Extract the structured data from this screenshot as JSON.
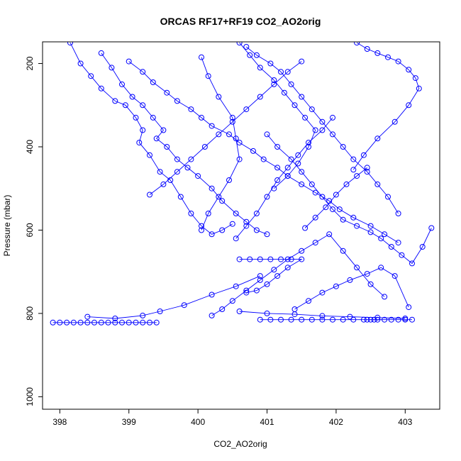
{
  "chart_data": {
    "type": "line",
    "title": "ORCAS RF17+RF19 CO2_AO2orig",
    "xlabel": "CO2_AO2orig",
    "ylabel": "Pressure (mbar)",
    "xlim": [
      397.75,
      403.5
    ],
    "ylim": [
      1030,
      148
    ],
    "y_inverted": true,
    "x_ticks": [
      398,
      399,
      400,
      401,
      402,
      403
    ],
    "y_ticks": [
      200,
      400,
      600,
      800,
      1000
    ],
    "line_color": "#0000ff",
    "marker": "open-circle",
    "grid": false,
    "legend": "none",
    "series": [
      {
        "x": [
          398.15,
          398.3,
          398.45,
          398.6,
          398.8,
          398.95,
          399.1,
          399.2,
          399.15,
          399.3,
          399.45,
          399.6,
          399.75,
          399.9,
          400.05,
          400.2,
          400.35,
          400.5
        ],
        "y": [
          150,
          200,
          230,
          260,
          290,
          300,
          330,
          360,
          390,
          420,
          460,
          480,
          520,
          560,
          590,
          610,
          600,
          585
        ]
      },
      {
        "x": [
          398.6,
          398.75,
          398.9,
          399.05,
          399.2,
          399.35,
          399.5,
          399.4,
          399.55,
          399.7,
          399.85,
          400.0,
          400.2,
          400.35,
          400.55,
          400.7,
          400.85,
          401.0
        ],
        "y": [
          175,
          210,
          250,
          280,
          300,
          330,
          360,
          380,
          400,
          430,
          450,
          470,
          500,
          530,
          560,
          580,
          600,
          610
        ]
      },
      {
        "x": [
          399.0,
          399.2,
          399.35,
          399.55,
          399.7,
          399.9,
          400.05,
          400.2,
          400.45,
          400.6,
          400.8,
          400.95,
          401.15,
          401.3,
          401.5,
          401.7,
          401.9,
          402.05,
          402.25,
          402.5,
          402.7,
          402.9
        ],
        "y": [
          195,
          220,
          245,
          270,
          290,
          310,
          330,
          350,
          370,
          390,
          410,
          430,
          450,
          470,
          490,
          510,
          530,
          550,
          570,
          590,
          610,
          630
        ]
      },
      {
        "x": [
          400.05,
          400.15,
          400.3,
          400.5,
          400.55,
          400.6,
          400.45,
          400.3,
          400.15,
          400.05
        ],
        "y": [
          185,
          230,
          280,
          330,
          380,
          430,
          480,
          520,
          560,
          600
        ]
      },
      {
        "x": [
          400.7,
          400.85,
          401.05,
          401.2,
          401.35,
          401.5,
          401.65,
          401.8,
          401.95,
          402.1,
          402.25,
          402.45,
          402.6,
          402.75,
          402.9
        ],
        "y": [
          160,
          180,
          200,
          220,
          250,
          280,
          310,
          340,
          370,
          400,
          430,
          460,
          490,
          520,
          560
        ]
      },
      {
        "x": [
          402.3,
          402.45,
          402.6,
          402.75,
          402.9,
          403.05,
          403.15,
          403.2,
          403.05,
          402.85,
          402.6,
          402.4,
          402.25
        ],
        "y": [
          150,
          165,
          175,
          185,
          195,
          215,
          235,
          260,
          300,
          340,
          380,
          420,
          455
        ]
      },
      {
        "x": [
          401.95,
          401.8,
          401.6,
          401.45,
          401.3,
          401.15,
          401.0,
          400.85,
          400.7,
          400.55
        ],
        "y": [
          330,
          360,
          390,
          420,
          450,
          480,
          520,
          560,
          590,
          620
        ]
      },
      {
        "x": [
          401.0,
          401.15,
          401.35,
          401.5,
          401.65,
          401.8,
          401.95,
          402.1,
          402.3,
          402.5,
          402.65,
          402.8,
          402.95,
          403.1,
          403.25,
          403.38
        ],
        "y": [
          370,
          400,
          430,
          460,
          490,
          520,
          550,
          575,
          590,
          605,
          620,
          640,
          660,
          680,
          640,
          595
        ]
      },
      {
        "x": [
          400.6,
          400.75,
          400.9,
          401.05,
          401.2,
          401.35,
          401.5,
          401.3,
          401.15,
          401.0,
          400.85,
          400.7
        ],
        "y": [
          670,
          670,
          670,
          670,
          670,
          670,
          670,
          690,
          710,
          730,
          745,
          750
        ]
      },
      {
        "x": [
          400.2,
          400.35,
          400.5,
          400.7,
          400.9,
          401.1,
          401.3,
          401.5,
          401.7,
          401.9,
          402.1,
          402.3,
          402.5,
          402.7
        ],
        "y": [
          805,
          790,
          770,
          745,
          720,
          695,
          670,
          650,
          630,
          610,
          650,
          690,
          730,
          760
        ]
      },
      {
        "x": [
          401.4,
          401.6,
          401.8,
          402.0,
          402.2,
          402.45,
          402.65,
          402.85,
          403.05
        ],
        "y": [
          790,
          770,
          750,
          735,
          720,
          705,
          690,
          710,
          785
        ]
      },
      {
        "x": [
          397.9,
          398.0,
          398.1,
          398.2,
          398.3,
          398.4,
          398.5,
          398.6,
          398.7,
          398.8,
          398.9,
          399.0,
          399.1,
          399.2,
          399.3,
          399.4
        ],
        "y": [
          822,
          822,
          822,
          822,
          822,
          822,
          822,
          822,
          822,
          822,
          822,
          822,
          822,
          822,
          822,
          822
        ]
      },
      {
        "x": [
          398.4,
          398.8,
          399.2,
          399.45,
          399.8,
          400.2,
          400.55,
          400.9
        ],
        "y": [
          808,
          812,
          805,
          795,
          780,
          755,
          735,
          710
        ]
      },
      {
        "x": [
          400.9,
          401.05,
          401.2,
          401.35,
          401.5,
          401.65,
          401.8,
          401.95,
          402.1,
          402.25,
          402.4,
          402.45,
          402.5,
          402.55,
          402.6,
          402.7,
          402.8,
          402.9,
          403.0,
          403.1
        ],
        "y": [
          815,
          815,
          815,
          815,
          815,
          815,
          815,
          815,
          815,
          815,
          815,
          815,
          815,
          815,
          815,
          815,
          815,
          815,
          815,
          815
        ]
      },
      {
        "x": [
          400.6,
          401.0,
          401.4,
          401.8,
          402.2,
          402.6,
          403.0
        ],
        "y": [
          795,
          800,
          802,
          806,
          808,
          810,
          812
        ]
      },
      {
        "x": [
          399.3,
          399.5,
          399.7,
          399.9,
          400.1,
          400.3,
          400.5,
          400.7,
          400.9,
          401.1,
          401.3,
          401.5
        ],
        "y": [
          515,
          490,
          460,
          430,
          400,
          370,
          340,
          310,
          280,
          250,
          220,
          195
        ]
      },
      {
        "x": [
          400.6,
          400.75,
          400.9,
          401.1,
          401.25,
          401.4,
          401.55,
          401.7,
          401.6,
          401.45,
          401.3,
          401.1
        ],
        "y": [
          150,
          180,
          210,
          240,
          270,
          300,
          330,
          360,
          400,
          440,
          470,
          500
        ]
      },
      {
        "x": [
          401.55,
          401.7,
          401.85,
          402.0,
          402.15,
          402.3,
          402.45
        ],
        "y": [
          595,
          570,
          545,
          515,
          490,
          470,
          450
        ]
      }
    ]
  }
}
